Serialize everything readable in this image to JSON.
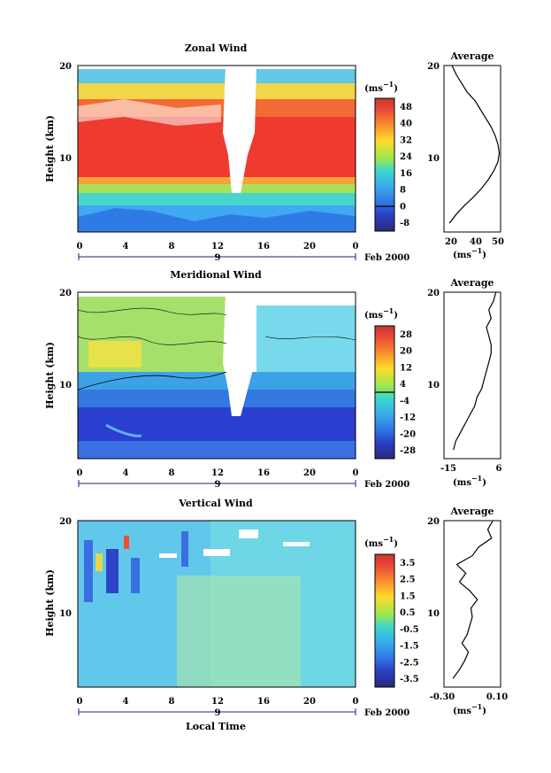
{
  "chart_data": [
    {
      "type": "heatmap",
      "name": "zonal",
      "title": "Zonal Wind",
      "ylabel": "Height (km)",
      "xlabel": "",
      "x_ticks": [
        "0",
        "4",
        "8",
        "12",
        "16",
        "20",
        "0"
      ],
      "y_ticks": [
        "20",
        "10"
      ],
      "date_label": "9",
      "date_suffix": "Feb 2000",
      "colorbar": {
        "unit_base": "(ms",
        "unit_exp": "−1",
        "unit_close": ")",
        "labels": [
          "48",
          "40",
          "32",
          "24",
          "16",
          "8",
          "0",
          "-8"
        ],
        "range": [
          -12,
          52
        ]
      },
      "profile": {
        "title": "Average",
        "unit_base": "(ms",
        "unit_exp": "−1",
        "unit_close": ")",
        "x_ticks": [
          "20",
          "40",
          "50"
        ],
        "y_ticks": [
          "20",
          "10"
        ],
        "height_km": [
          2,
          3,
          4,
          5,
          6,
          7,
          8,
          9,
          10,
          11,
          12,
          13,
          14,
          15,
          16,
          17,
          18,
          19,
          20
        ],
        "value": [
          14,
          19,
          25,
          32,
          38,
          43,
          47,
          50,
          51,
          50,
          48,
          45,
          41,
          37,
          33,
          27,
          23,
          19,
          16
        ]
      }
    },
    {
      "type": "heatmap",
      "name": "meridional",
      "title": "Meridional Wind",
      "ylabel": "Height (km)",
      "xlabel": "",
      "x_ticks": [
        "0",
        "4",
        "8",
        "12",
        "16",
        "20",
        "0"
      ],
      "y_ticks": [
        "20",
        "10"
      ],
      "date_label": "9",
      "date_suffix": "Feb 2000",
      "colorbar": {
        "unit_base": "(ms",
        "unit_exp": "−1",
        "unit_close": ")",
        "labels": [
          "28",
          "20",
          "12",
          "4",
          "-4",
          "-12",
          "-20",
          "-28"
        ],
        "range": [
          -32,
          32
        ]
      },
      "profile": {
        "title": "Average",
        "unit_base": "(ms",
        "unit_exp": "−1",
        "unit_close": ")",
        "x_ticks": [
          "-15",
          "6"
        ],
        "y_ticks": [
          "20",
          "10"
        ],
        "height_km": [
          2,
          3,
          4,
          5,
          6,
          7,
          8,
          9,
          10,
          11,
          12,
          13,
          14,
          15,
          16,
          17,
          18,
          19,
          20
        ],
        "value": [
          -13,
          -12,
          -10,
          -8,
          -6,
          -4,
          -3,
          -1,
          0,
          1,
          2,
          3,
          3,
          2,
          1,
          3,
          2,
          4,
          5
        ]
      }
    },
    {
      "type": "heatmap",
      "name": "vertical",
      "title": "Vertical Wind",
      "ylabel": "Height (km)",
      "xlabel": "Local Time",
      "x_ticks": [
        "0",
        "4",
        "8",
        "12",
        "16",
        "20",
        "0"
      ],
      "y_ticks": [
        "20",
        "10"
      ],
      "date_label": "9",
      "date_suffix": "Feb 2000",
      "colorbar": {
        "unit_base": "(ms",
        "unit_exp": "−1",
        "unit_close": ")",
        "labels": [
          "3.5",
          "2.5",
          "1.5",
          "0.5",
          "-0.5",
          "-1.5",
          "-2.5",
          "-3.5"
        ],
        "range": [
          -4,
          4
        ]
      },
      "profile": {
        "title": "Average",
        "unit_base": "(ms",
        "unit_exp": "−1",
        "unit_close": ")",
        "x_ticks": [
          "-0.30",
          "0.10"
        ],
        "y_ticks": [
          "20",
          "10"
        ],
        "height_km": [
          2,
          3,
          4,
          5,
          6,
          7,
          8,
          9,
          10,
          11,
          12,
          13,
          14,
          15,
          16,
          17,
          18,
          19,
          20
        ],
        "value": [
          -0.25,
          -0.2,
          -0.16,
          -0.13,
          -0.18,
          -0.14,
          -0.12,
          -0.1,
          -0.11,
          -0.06,
          -0.12,
          -0.2,
          -0.15,
          -0.22,
          -0.1,
          -0.05,
          0.05,
          0.02,
          0.06
        ]
      }
    }
  ]
}
